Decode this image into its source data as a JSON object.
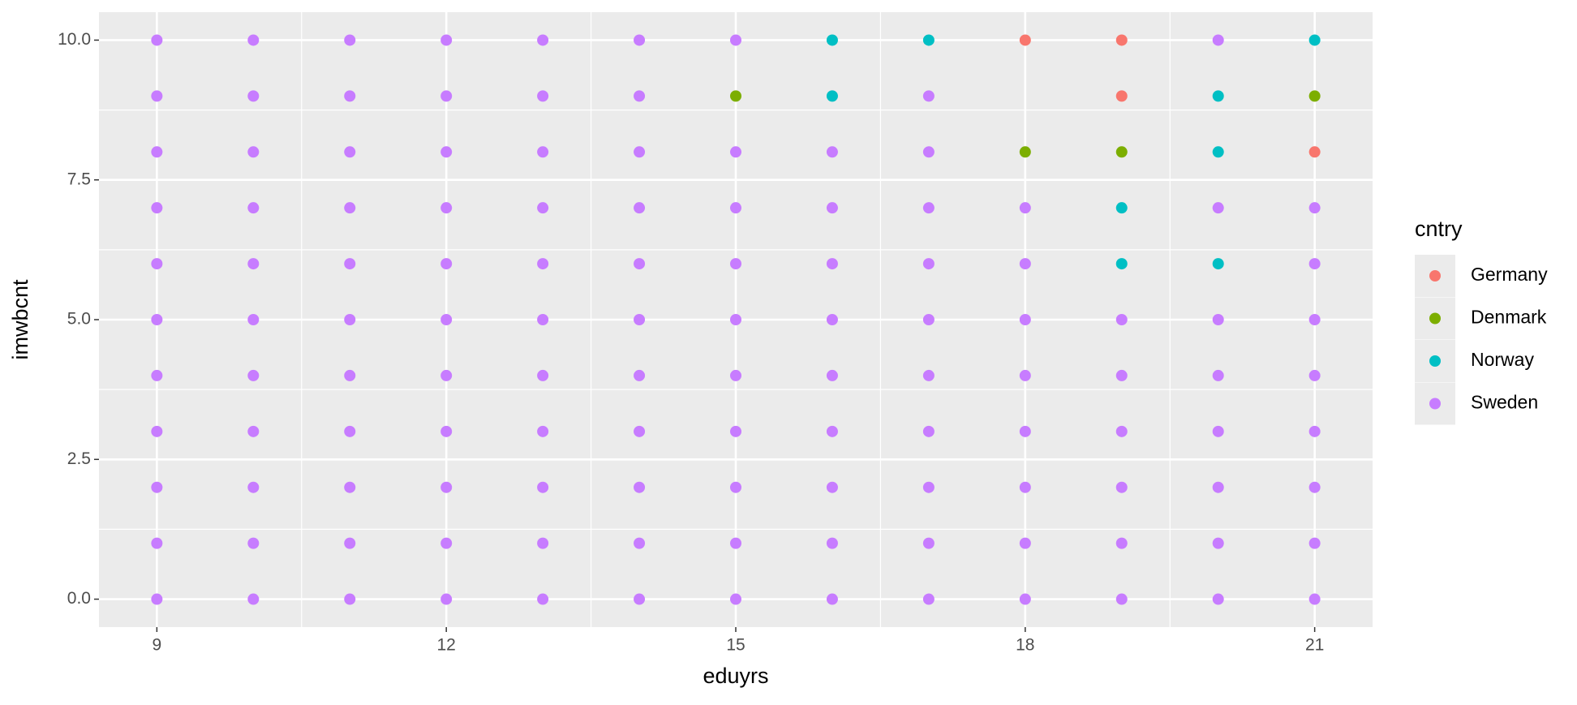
{
  "chart_data": {
    "type": "scatter",
    "x_label": "eduyrs",
    "y_label": "imwbcnt",
    "legend_title": "cntry",
    "xlim": [
      8.4,
      21.6
    ],
    "ylim": [
      -0.5,
      10.5
    ],
    "xticks": [
      9,
      12,
      15,
      18,
      21
    ],
    "yticks": [
      {
        "value": 0,
        "label": "0.0"
      },
      {
        "value": 2.5,
        "label": "2.5"
      },
      {
        "value": 5,
        "label": "5.0"
      },
      {
        "value": 7.5,
        "label": "7.5"
      },
      {
        "value": 10,
        "label": "10.0"
      }
    ],
    "grid": true,
    "legend_position": "right",
    "series": [
      {
        "name": "Germany",
        "color": "#F8766D",
        "x": [
          18,
          19,
          19,
          21
        ],
        "values": [
          10,
          9,
          10,
          8
        ]
      },
      {
        "name": "Denmark",
        "color": "#7CAE00",
        "x": [
          15,
          18,
          19,
          21
        ],
        "values": [
          9,
          8,
          8,
          9
        ]
      },
      {
        "name": "Norway",
        "color": "#00BFC4",
        "x": [
          16,
          16,
          17,
          19,
          19,
          20,
          20,
          20,
          21
        ],
        "values": [
          9,
          10,
          10,
          6,
          7,
          6,
          8,
          9,
          10
        ]
      },
      {
        "name": "Sweden",
        "color": "#C77CFF",
        "x": [
          9,
          9,
          9,
          9,
          9,
          9,
          9,
          9,
          9,
          9,
          9,
          10,
          10,
          10,
          10,
          10,
          10,
          10,
          10,
          10,
          10,
          10,
          11,
          11,
          11,
          11,
          11,
          11,
          11,
          11,
          11,
          11,
          11,
          12,
          12,
          12,
          12,
          12,
          12,
          12,
          12,
          12,
          12,
          12,
          13,
          13,
          13,
          13,
          13,
          13,
          13,
          13,
          13,
          13,
          13,
          14,
          14,
          14,
          14,
          14,
          14,
          14,
          14,
          14,
          14,
          14,
          15,
          15,
          15,
          15,
          15,
          15,
          15,
          15,
          15,
          15,
          16,
          16,
          16,
          16,
          16,
          16,
          16,
          16,
          16,
          17,
          17,
          17,
          17,
          17,
          17,
          17,
          17,
          17,
          17,
          18,
          18,
          18,
          18,
          18,
          18,
          18,
          18,
          19,
          19,
          19,
          19,
          19,
          19,
          20,
          20,
          20,
          20,
          20,
          20,
          20,
          20,
          21,
          21,
          21,
          21,
          21,
          21,
          21,
          21
        ],
        "values": [
          0,
          1,
          2,
          3,
          4,
          5,
          6,
          7,
          8,
          9,
          10,
          0,
          1,
          2,
          3,
          4,
          5,
          6,
          7,
          8,
          9,
          10,
          0,
          1,
          2,
          3,
          4,
          5,
          6,
          7,
          8,
          9,
          10,
          0,
          1,
          2,
          3,
          4,
          5,
          6,
          7,
          8,
          9,
          10,
          0,
          1,
          2,
          3,
          4,
          5,
          6,
          7,
          8,
          9,
          10,
          0,
          1,
          2,
          3,
          4,
          5,
          6,
          7,
          8,
          9,
          10,
          0,
          1,
          2,
          3,
          4,
          5,
          6,
          7,
          8,
          10,
          0,
          1,
          2,
          3,
          4,
          5,
          6,
          7,
          8,
          0,
          1,
          2,
          3,
          4,
          5,
          6,
          7,
          8,
          9,
          0,
          1,
          2,
          3,
          4,
          5,
          6,
          7,
          0,
          1,
          2,
          3,
          4,
          5,
          0,
          1,
          2,
          3,
          4,
          5,
          7,
          10,
          0,
          1,
          2,
          3,
          4,
          5,
          6,
          7
        ]
      }
    ]
  }
}
